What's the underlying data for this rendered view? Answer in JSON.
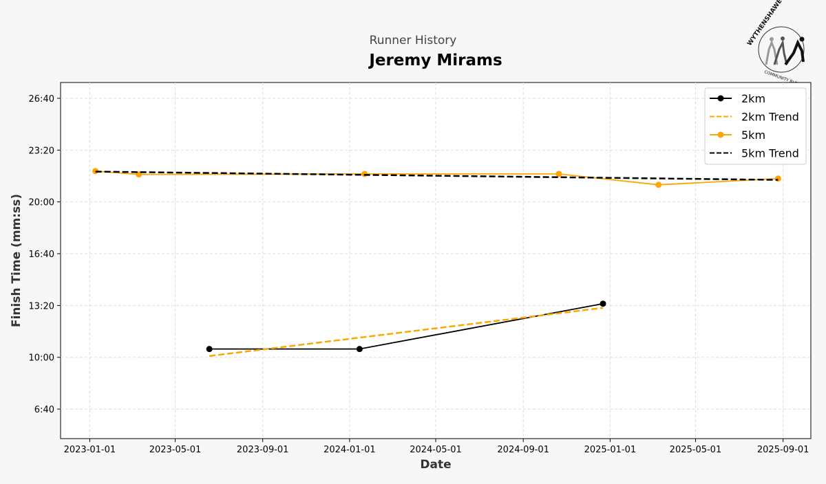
{
  "header": {
    "subtitle": "Runner History",
    "title": "Jeremy Mirams"
  },
  "logo": {
    "text_top": "WYTHENSHAWE",
    "text_bottom": "COMMUNITY RUN"
  },
  "chart_data": {
    "type": "line",
    "title": "Jeremy Mirams",
    "subtitle": "Runner History",
    "xlabel": "Date",
    "ylabel": "Finish Time (mm:ss)",
    "xlim": [
      "2022-11-21",
      "2025-10-10"
    ],
    "ylim": [
      286,
      1661
    ],
    "x_ticks": [
      "2023-01-01",
      "2023-05-01",
      "2023-09-01",
      "2024-01-01",
      "2024-05-01",
      "2024-09-01",
      "2025-01-01",
      "2025-05-01",
      "2025-09-01"
    ],
    "y_ticks": [
      {
        "value": 400,
        "label": "6:40"
      },
      {
        "value": 600,
        "label": "10:00"
      },
      {
        "value": 800,
        "label": "13:20"
      },
      {
        "value": 1000,
        "label": "16:40"
      },
      {
        "value": 1200,
        "label": "20:00"
      },
      {
        "value": 1400,
        "label": "23:20"
      },
      {
        "value": 1600,
        "label": "26:40"
      }
    ],
    "grid": true,
    "legend_position": "top-right",
    "series": [
      {
        "name": "2km",
        "color": "#000000",
        "style": "solid",
        "markers": true,
        "x": [
          "2023-06-18",
          "2024-01-15",
          "2024-12-22"
        ],
        "y": [
          632,
          632,
          807
        ]
      },
      {
        "name": "2km Trend",
        "color": "#ffa500",
        "style": "dashed",
        "markers": false,
        "x": [
          "2023-06-18",
          "2024-12-22"
        ],
        "y": [
          605,
          791
        ]
      },
      {
        "name": "5km",
        "color": "#ffa500",
        "style": "solid",
        "markers": true,
        "x": [
          "2023-01-09",
          "2023-03-11",
          "2024-01-22",
          "2024-10-21",
          "2025-03-10",
          "2025-08-25"
        ],
        "y": [
          1319,
          1306,
          1308,
          1308,
          1266,
          1290
        ]
      },
      {
        "name": "5km Trend",
        "color": "#000000",
        "style": "dashed",
        "markers": false,
        "x": [
          "2023-01-09",
          "2025-08-25"
        ],
        "y": [
          1317,
          1285
        ]
      }
    ]
  }
}
